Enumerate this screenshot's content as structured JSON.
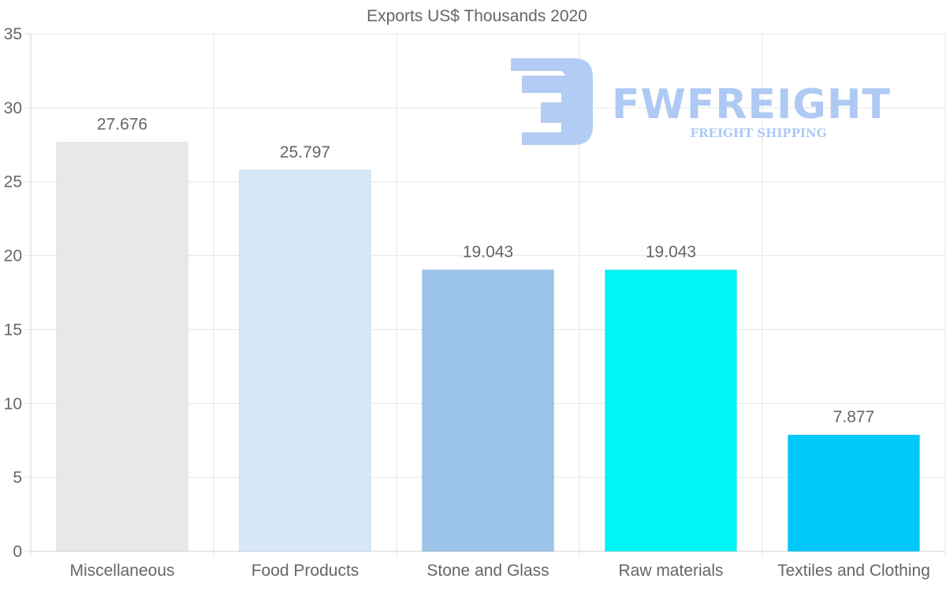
{
  "chart_data": {
    "type": "bar",
    "title": "Exports US$ Thousands 2020",
    "categories": [
      "Miscellaneous",
      "Food Products",
      "Stone and Glass",
      "Raw materials",
      "Textiles and Clothing"
    ],
    "values": [
      27.676,
      25.797,
      19.043,
      19.043,
      7.877
    ],
    "value_labels": [
      "27.676",
      "25.797",
      "19.043",
      "19.043",
      "7.877"
    ],
    "colors": [
      "#e8e8e8",
      "#d6e7f8",
      "#9bc4e8",
      "#00f5f5",
      "#00c8fb"
    ],
    "ylim": [
      0,
      35
    ],
    "yticks": [
      0,
      5,
      10,
      15,
      20,
      25,
      30,
      35
    ],
    "grid": true,
    "xlabel": "",
    "ylabel": ""
  },
  "watermark": {
    "brand": "FWFREIGHT",
    "tagline": "FREIGHT SHIPPING",
    "color": "#aec9f3"
  }
}
